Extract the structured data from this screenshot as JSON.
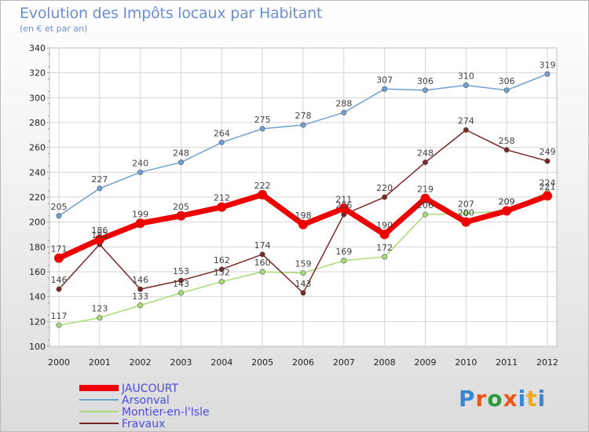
{
  "title": "Evolution des Impôts locaux par Habitant",
  "subtitle": "(en € et par an)",
  "logo": {
    "text": "Proxiti",
    "letters": [
      "P",
      "r",
      "o",
      "x",
      "i",
      "t",
      "i"
    ],
    "colors": [
      "#3a86d6",
      "#e8581c",
      "#2e9a3a",
      "#e8581c",
      "#3a86d6",
      "#f2a81b",
      "#3a86d6"
    ]
  },
  "chart_data": {
    "type": "line",
    "title": "Evolution des Impôts locaux par Habitant",
    "subtitle": "(en € et par an)",
    "x": [
      "2000",
      "2001",
      "2002",
      "2003",
      "2004",
      "2005",
      "2006",
      "2007",
      "2008",
      "2009",
      "2010",
      "2011",
      "2012"
    ],
    "ylim": [
      100,
      340
    ],
    "yticks": [
      100,
      120,
      140,
      160,
      180,
      200,
      220,
      240,
      260,
      280,
      300,
      320,
      340
    ],
    "grid": true,
    "legend_position": "bottom-left",
    "series": [
      {
        "name": "JAUCOURT",
        "color": "#ee0000",
        "bold": true,
        "values": [
          171,
          186,
          199,
          205,
          212,
          222,
          198,
          211,
          190,
          219,
          200,
          209,
          221
        ]
      },
      {
        "name": "Arsonval",
        "color": "#6fa0d2",
        "values": [
          205,
          227,
          240,
          248,
          264,
          275,
          278,
          288,
          307,
          306,
          310,
          306,
          319
        ]
      },
      {
        "name": "Montier-en-l'Isle",
        "color": "#a9dc76",
        "values": [
          117,
          123,
          133,
          143,
          152,
          160,
          159,
          169,
          172,
          206,
          207,
          209,
          224
        ]
      },
      {
        "name": "Fravaux",
        "color": "#7a2626",
        "values": [
          146,
          182,
          146,
          153,
          162,
          174,
          143,
          206,
          220,
          248,
          274,
          258,
          249
        ]
      }
    ]
  }
}
